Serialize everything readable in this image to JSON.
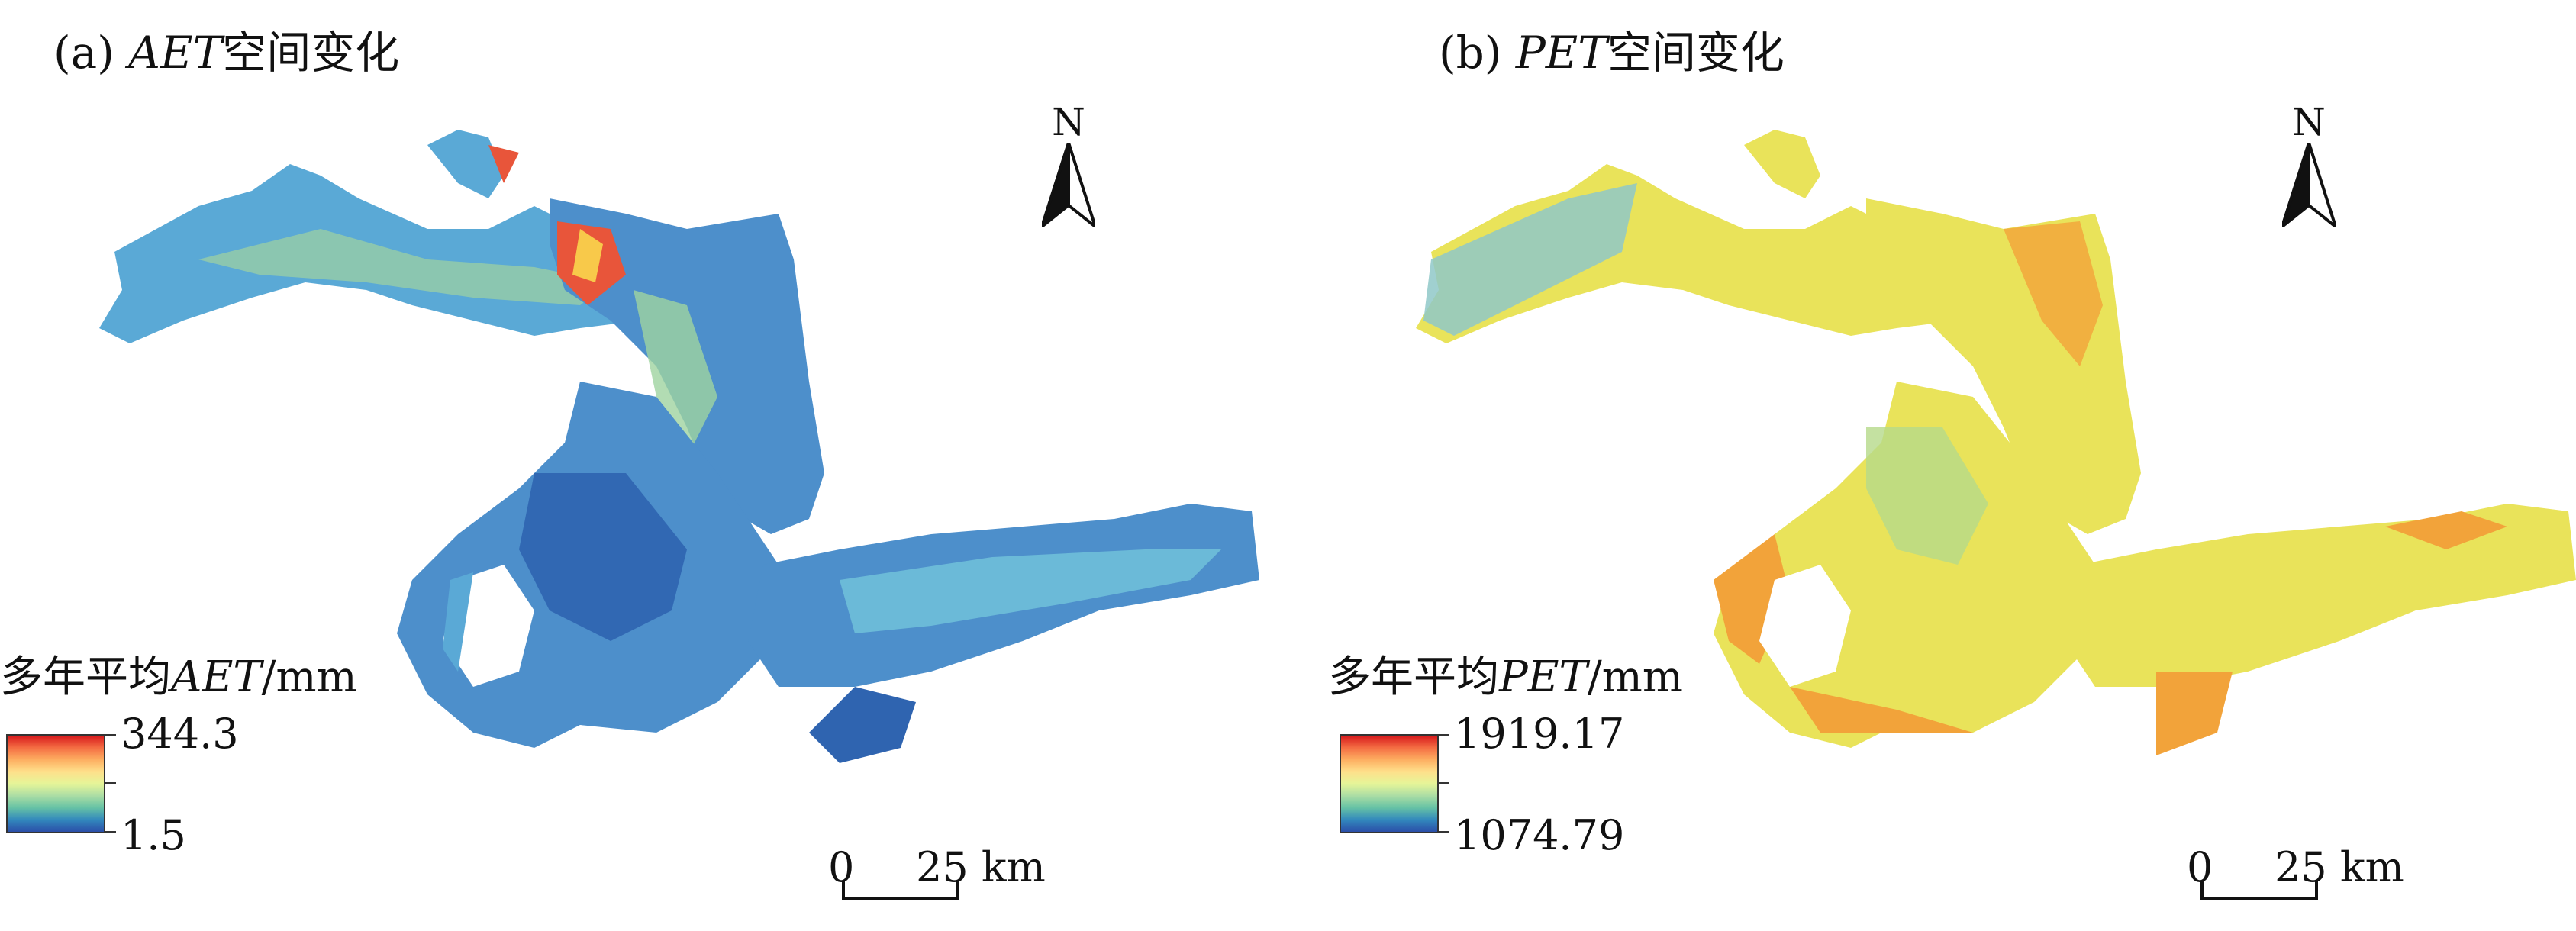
{
  "panel_a": {
    "title_prefix": "(a) ",
    "title_var": "AET",
    "title_suffix": "空间变化",
    "north_label": "N",
    "legend_title_prefix": "多年平均",
    "legend_title_var": "AET",
    "legend_title_unit": "/mm",
    "legend_max": "344.3",
    "legend_min": "1.5",
    "scale_zero": "0",
    "scale_distance": "25 km"
  },
  "panel_b": {
    "title_prefix": "(b) ",
    "title_var": "PET",
    "title_suffix": "空间变化",
    "north_label": "N",
    "legend_title_prefix": "多年平均",
    "legend_title_var": "PET",
    "legend_title_unit": "/mm",
    "legend_max": "1919.17",
    "legend_min": "1074.79",
    "scale_zero": "0",
    "scale_distance": "25 km"
  },
  "colors": {
    "ramp": [
      "#d7191c",
      "#f46d43",
      "#fdae61",
      "#fee08b",
      "#e6f598",
      "#abdda4",
      "#66c2a5",
      "#3288bd",
      "#2b4ea8"
    ],
    "aet_fill": "#5aa9d6",
    "aet_dark": "#2f64b0",
    "aet_green": "#9fd3a0",
    "aet_hot": "#e8553a",
    "pet_fill": "#e9e35a",
    "pet_orange": "#f2a33a",
    "pet_blue": "#8fc8c8"
  }
}
